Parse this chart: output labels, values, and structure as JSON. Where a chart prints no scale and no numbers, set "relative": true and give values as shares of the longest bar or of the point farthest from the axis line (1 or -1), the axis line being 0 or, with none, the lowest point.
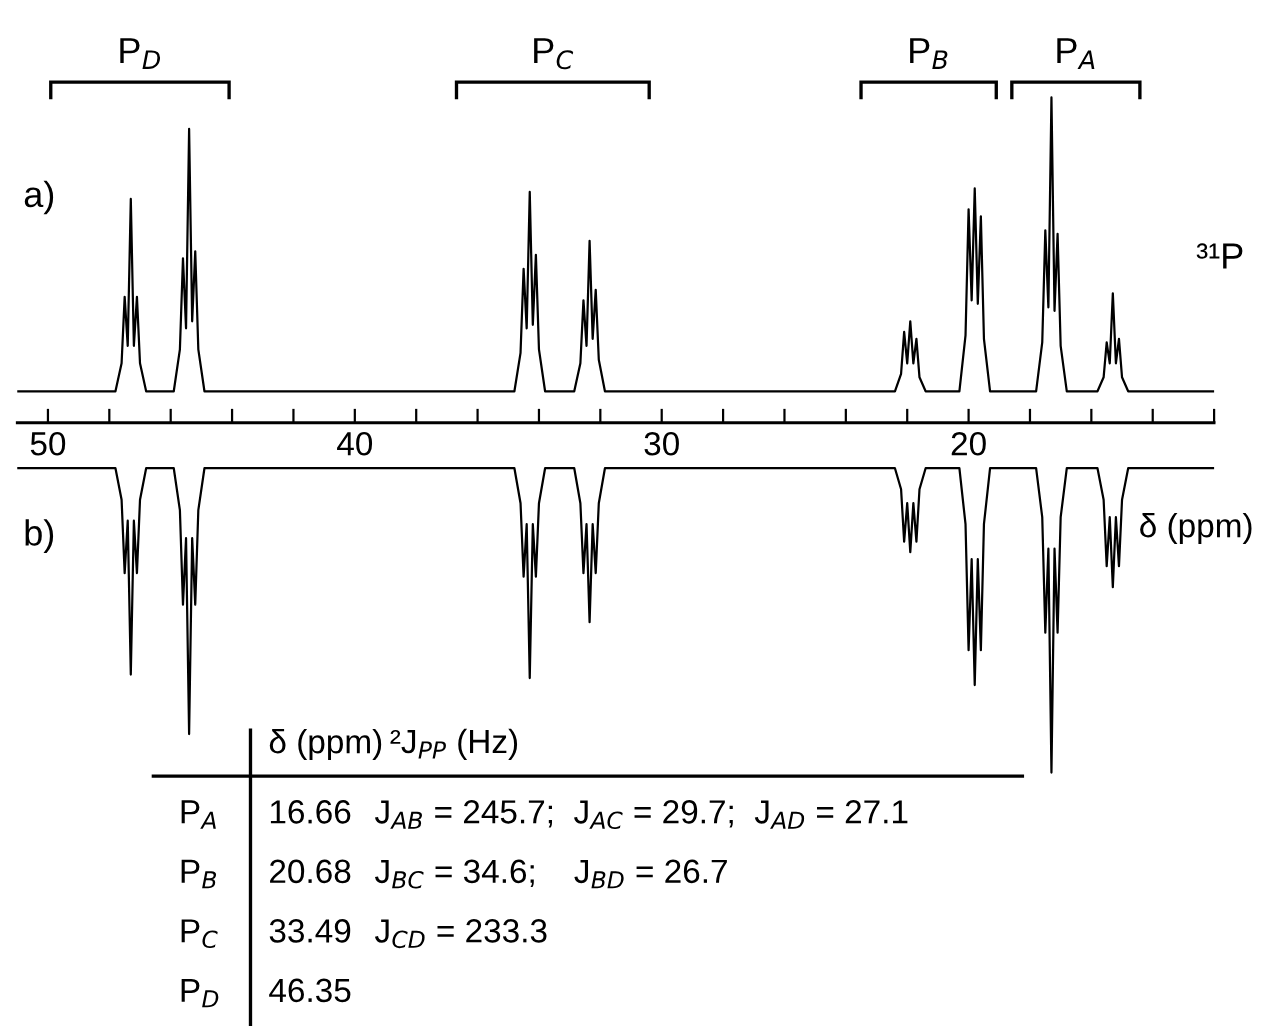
{
  "chart_data": [
    {
      "type": "line",
      "relative": true,
      "xlim": [
        51,
        12
      ],
      "xticks": [
        {
          "value": 50,
          "label": "50"
        },
        {
          "value": 48,
          "label": null
        },
        {
          "value": 46,
          "label": null
        },
        {
          "value": 44,
          "label": null
        },
        {
          "value": 42,
          "label": null
        },
        {
          "value": 40,
          "label": "40"
        },
        {
          "value": 38,
          "label": null
        },
        {
          "value": 36,
          "label": null
        },
        {
          "value": 34,
          "label": null
        },
        {
          "value": 32,
          "label": null
        },
        {
          "value": 30,
          "label": "30"
        },
        {
          "value": 28,
          "label": null
        },
        {
          "value": 26,
          "label": null
        },
        {
          "value": 24,
          "label": null
        },
        {
          "value": 22,
          "label": null
        },
        {
          "value": 20,
          "label": "20"
        },
        {
          "value": 18,
          "label": null
        },
        {
          "value": 16,
          "label": null
        },
        {
          "value": 14,
          "label": null
        },
        {
          "value": 12,
          "label": null
        }
      ],
      "tick_labels": "x",
      "xlabel": "δ (ppm)",
      "annotations": [
        "a)",
        "b)",
        "³¹P",
        "P$_{D}$",
        "P$_{C}$",
        "P$_{B}$",
        "P$_{A}$"
      ],
      "x": [
        51,
        47.8,
        47.6,
        47.5,
        47.4,
        47.3,
        47.2,
        47.1,
        47.0,
        46.8,
        45.9,
        45.7,
        45.6,
        45.5,
        45.4,
        45.3,
        45.2,
        45.1,
        44.9,
        34.8,
        34.6,
        34.5,
        34.4,
        34.3,
        34.2,
        34.1,
        34.0,
        33.8,
        32.85,
        32.65,
        32.55,
        32.45,
        32.35,
        32.25,
        32.15,
        32.05,
        31.85,
        22.4,
        22.2,
        22.1,
        22.0,
        21.9,
        21.8,
        21.7,
        21.6,
        21.4,
        20.3,
        20.1,
        20.0,
        19.9,
        19.8,
        19.7,
        19.6,
        19.5,
        19.3,
        17.8,
        17.6,
        17.5,
        17.4,
        17.3,
        17.2,
        17.1,
        17.0,
        16.8,
        15.8,
        15.6,
        15.5,
        15.4,
        15.3,
        15.2,
        15.1,
        15.0,
        14.8,
        12
      ],
      "series": [
        {
          "color": "#000000",
          "values": [
            0.09,
            0.09,
            0.17,
            0.36,
            0.22,
            0.64,
            0.22,
            0.36,
            0.17,
            0.09,
            0.09,
            0.21,
            0.47,
            0.27,
            0.84,
            0.29,
            0.49,
            0.21,
            0.09,
            0.09,
            0.2,
            0.44,
            0.27,
            0.66,
            0.28,
            0.48,
            0.21,
            0.09,
            0.09,
            0.17,
            0.35,
            0.22,
            0.52,
            0.24,
            0.38,
            0.18,
            0.09,
            0.09,
            0.14,
            0.26,
            0.17,
            0.29,
            0.17,
            0.24,
            0.13,
            0.09,
            0.09,
            0.25,
            0.61,
            0.35,
            0.67,
            0.34,
            0.59,
            0.24,
            0.09,
            0.09,
            0.23,
            0.55,
            0.33,
            0.93,
            0.32,
            0.54,
            0.22,
            0.09,
            0.09,
            0.13,
            0.23,
            0.17,
            0.37,
            0.17,
            0.24,
            0.13,
            0.09,
            0.09
          ]
        },
        {
          "color": "#000000",
          "values": [
            -0.13,
            -0.13,
            -0.22,
            -0.43,
            -0.28,
            -0.72,
            -0.28,
            -0.43,
            -0.22,
            -0.13,
            -0.13,
            -0.25,
            -0.52,
            -0.33,
            -0.89,
            -0.33,
            -0.52,
            -0.25,
            -0.13,
            -0.13,
            -0.23,
            -0.44,
            -0.29,
            -0.73,
            -0.29,
            -0.44,
            -0.23,
            -0.13,
            -0.13,
            -0.23,
            -0.43,
            -0.29,
            -0.57,
            -0.29,
            -0.43,
            -0.23,
            -0.13,
            -0.13,
            -0.19,
            -0.34,
            -0.23,
            -0.37,
            -0.23,
            -0.34,
            -0.19,
            -0.13,
            -0.13,
            -0.29,
            -0.65,
            -0.39,
            -0.75,
            -0.39,
            -0.65,
            -0.29,
            -0.13,
            -0.13,
            -0.27,
            -0.6,
            -0.36,
            -1,
            -0.36,
            -0.6,
            -0.27,
            -0.13,
            -0.13,
            -0.22,
            -0.41,
            -0.27,
            -0.47,
            -0.27,
            -0.41,
            -0.22,
            -0.13,
            -0.13
          ]
        }
      ]
    },
    {
      "type": "other",
      "annotations": [
        "δ (ppm)",
        "²J$_{PP}$ (Hz)",
        "P$_{A}$",
        "16.66",
        "J$_{AB}$ = 245.7;  J$_{AC}$ = 29.7;  J$_{AD}$ = 27.1",
        "P$_{B}$",
        "20.68",
        "J$_{BC}$ = 34.6;    J$_{BD}$ = 26.7",
        "P$_{C}$",
        "33.49",
        "J$_{CD}$ = 233.3",
        "P$_{D}$",
        "46.35"
      ]
    }
  ]
}
